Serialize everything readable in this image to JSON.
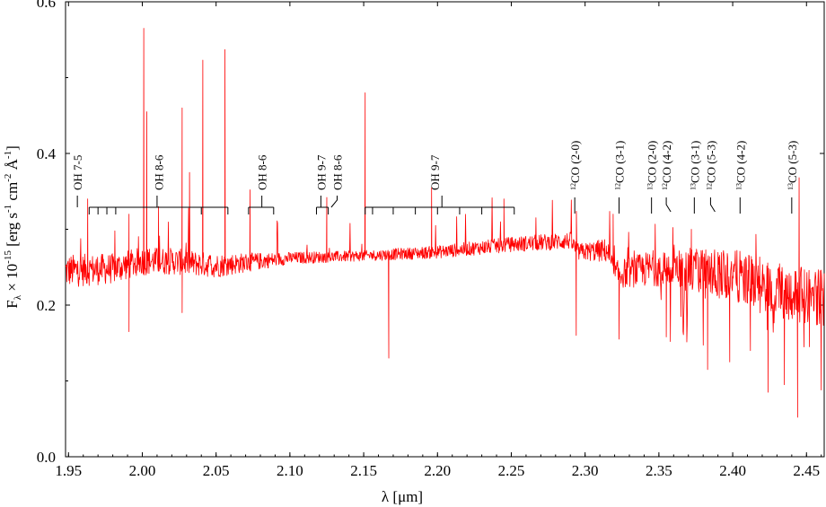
{
  "chart_data": {
    "type": "line",
    "title": "",
    "xlabel": "λ [μm]",
    "ylabel_parts": {
      "f": "F",
      "lam": "λ",
      "times": " × 10",
      "exp": "-15",
      "units_pre": " [erg s",
      "m1": "-1",
      "cm": " cm",
      "m2": "-2",
      "ang": " Å",
      "m3": "-1",
      "close": "]"
    },
    "xlim": [
      1.948,
      2.462
    ],
    "ylim": [
      0.0,
      0.6
    ],
    "xticks": [
      1.95,
      2.0,
      2.05,
      2.1,
      2.15,
      2.2,
      2.25,
      2.3,
      2.35,
      2.4,
      2.45
    ],
    "xtick_labels": [
      "1.95",
      "2.00",
      "2.05",
      "2.10",
      "2.15",
      "2.20",
      "2.25",
      "2.30",
      "2.35",
      "2.40",
      "2.45"
    ],
    "yticks": [
      0.0,
      0.2,
      0.4,
      0.6
    ],
    "ytick_labels": [
      "0.0",
      "0.2",
      "0.4",
      "0.6"
    ],
    "series": [
      {
        "color": "#ff0000",
        "continuum": [
          [
            1.948,
            0.245
          ],
          [
            1.98,
            0.248
          ],
          [
            2.0,
            0.258
          ],
          [
            2.02,
            0.258
          ],
          [
            2.05,
            0.252
          ],
          [
            2.1,
            0.262
          ],
          [
            2.15,
            0.265
          ],
          [
            2.2,
            0.27
          ],
          [
            2.25,
            0.28
          ],
          [
            2.29,
            0.285
          ],
          [
            2.295,
            0.27
          ],
          [
            2.315,
            0.272
          ],
          [
            2.32,
            0.24
          ],
          [
            2.35,
            0.25
          ],
          [
            2.4,
            0.24
          ],
          [
            2.44,
            0.215
          ],
          [
            2.462,
            0.21
          ]
        ],
        "noise": [
          [
            1.948,
            0.022
          ],
          [
            2.05,
            0.016
          ],
          [
            2.1,
            0.008
          ],
          [
            2.15,
            0.007
          ],
          [
            2.25,
            0.01
          ],
          [
            2.3,
            0.012
          ],
          [
            2.32,
            0.018
          ],
          [
            2.37,
            0.03
          ],
          [
            2.4,
            0.034
          ],
          [
            2.462,
            0.038
          ]
        ],
        "spikes": [
          [
            2.001,
            0.565
          ],
          [
            2.003,
            0.455
          ],
          [
            2.027,
            0.46
          ],
          [
            2.032,
            0.375
          ],
          [
            2.041,
            0.523
          ],
          [
            2.056,
            0.537
          ],
          [
            2.073,
            0.352
          ],
          [
            2.125,
            0.342
          ],
          [
            2.151,
            0.48
          ],
          [
            2.196,
            0.355
          ],
          [
            2.245,
            0.34
          ],
          [
            2.319,
            0.32
          ],
          [
            2.372,
            0.3
          ],
          [
            2.445,
            0.368
          ],
          [
            1.963,
            0.34
          ],
          [
            2.011,
            0.33
          ],
          [
            1.991,
            0.32
          ]
        ],
        "dips": [
          [
            2.027,
            0.19
          ],
          [
            1.991,
            0.165
          ],
          [
            2.167,
            0.13
          ],
          [
            2.294,
            0.16
          ],
          [
            2.323,
            0.155
          ],
          [
            2.355,
            0.158
          ],
          [
            2.365,
            0.2
          ],
          [
            2.383,
            0.115
          ],
          [
            2.398,
            0.125
          ],
          [
            2.412,
            0.14
          ],
          [
            2.424,
            0.085
          ],
          [
            2.435,
            0.095
          ],
          [
            2.444,
            0.052
          ],
          [
            2.452,
            0.145
          ],
          [
            2.46,
            0.088
          ]
        ]
      }
    ],
    "annotations": {
      "oh_labels": [
        {
          "text": "OH 7-5",
          "x": 1.956,
          "tick_x": 1.956
        },
        {
          "text": "OH 8-6",
          "x": 2.011,
          "tick_x": 2.01
        },
        {
          "text": "OH 8-6",
          "x": 2.081,
          "tick_x": 2.081
        },
        {
          "text": "OH 9-7",
          "x": 2.121,
          "tick_x": 2.121
        },
        {
          "text": "OH 8-6",
          "x": 2.132,
          "tick_x": 2.128,
          "leader": true
        },
        {
          "text": "OH 9-7",
          "x": 2.198,
          "tick_x": 2.203
        }
      ],
      "oh_combs": [
        {
          "x1": 1.964,
          "x2": 2.058,
          "teeth": [
            1.964,
            1.97,
            1.976,
            1.982,
            2.04,
            2.058
          ]
        },
        {
          "x1": 2.072,
          "x2": 2.089,
          "teeth": [
            2.072,
            2.089
          ]
        },
        {
          "x1": 2.118,
          "x2": 2.126,
          "teeth": [
            2.118,
            2.126
          ]
        },
        {
          "x1": 2.151,
          "x2": 2.252,
          "teeth": [
            2.151,
            2.156,
            2.17,
            2.185,
            2.2,
            2.215,
            2.23,
            2.252
          ]
        }
      ],
      "co_labels": [
        {
          "iso": "12",
          "text": "CO (2-0)",
          "x": 2.293,
          "leader": false
        },
        {
          "iso": "12",
          "text": "CO (3-1)",
          "x": 2.323,
          "leader": false
        },
        {
          "iso": "13",
          "text": "CO (2-0)",
          "x": 2.345,
          "leader": false
        },
        {
          "iso": "12",
          "text": "CO (4-2)",
          "x": 2.355,
          "leader": true
        },
        {
          "iso": "13",
          "text": "CO (3-1)",
          "x": 2.374,
          "leader": false
        },
        {
          "iso": "12",
          "text": "CO (5-3)",
          "x": 2.385,
          "leader": true
        },
        {
          "iso": "13",
          "text": "CO (4-2)",
          "x": 2.405,
          "leader": false
        },
        {
          "iso": "13",
          "text": "CO (5-3)",
          "x": 2.44,
          "leader": false
        }
      ]
    }
  }
}
